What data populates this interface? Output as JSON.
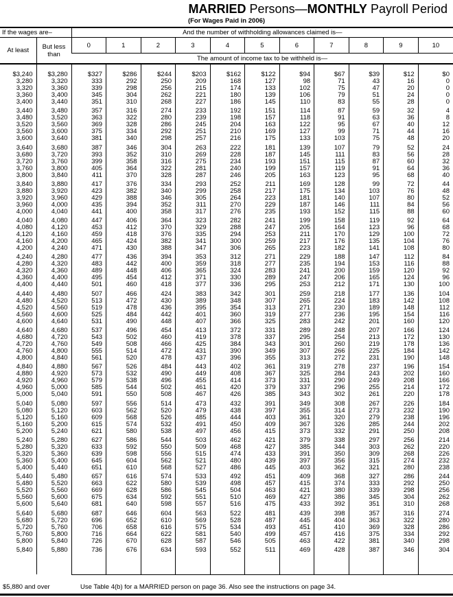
{
  "title": {
    "part1": "MARRIED",
    "part2": " Persons—",
    "part3": "MONTHLY",
    "part4": " Payroll Period"
  },
  "subtitle": "(For Wages Paid in 2006)",
  "header": {
    "wages": "If the wages are–",
    "allowances": "And the number of withholding allowances claimed is—",
    "at_least": "At least",
    "but_less_than": "But less than",
    "allowance_numbers": [
      "0",
      "1",
      "2",
      "3",
      "4",
      "5",
      "6",
      "7",
      "8",
      "9",
      "10"
    ],
    "amount": "The amount of income tax to be withheld is—"
  },
  "rows": [
    [
      "$3,240",
      "$3,280",
      "$327",
      "$286",
      "$244",
      "$203",
      "$162",
      "$122",
      "$94",
      "$67",
      "$39",
      "$12",
      "$0"
    ],
    [
      "3,280",
      "3,320",
      "333",
      "292",
      "250",
      "209",
      "168",
      "127",
      "98",
      "71",
      "43",
      "16",
      "0"
    ],
    [
      "3,320",
      "3,360",
      "339",
      "298",
      "256",
      "215",
      "174",
      "133",
      "102",
      "75",
      "47",
      "20",
      "0"
    ],
    [
      "3,360",
      "3,400",
      "345",
      "304",
      "262",
      "221",
      "180",
      "139",
      "106",
      "79",
      "51",
      "24",
      "0"
    ],
    [
      "3,400",
      "3,440",
      "351",
      "310",
      "268",
      "227",
      "186",
      "145",
      "110",
      "83",
      "55",
      "28",
      "0"
    ],
    [
      "3,440",
      "3,480",
      "357",
      "316",
      "274",
      "233",
      "192",
      "151",
      "114",
      "87",
      "59",
      "32",
      "4"
    ],
    [
      "3,480",
      "3,520",
      "363",
      "322",
      "280",
      "239",
      "198",
      "157",
      "118",
      "91",
      "63",
      "36",
      "8"
    ],
    [
      "3,520",
      "3,560",
      "369",
      "328",
      "286",
      "245",
      "204",
      "163",
      "122",
      "95",
      "67",
      "40",
      "12"
    ],
    [
      "3,560",
      "3,600",
      "375",
      "334",
      "292",
      "251",
      "210",
      "169",
      "127",
      "99",
      "71",
      "44",
      "16"
    ],
    [
      "3,600",
      "3,640",
      "381",
      "340",
      "298",
      "257",
      "216",
      "175",
      "133",
      "103",
      "75",
      "48",
      "20"
    ],
    [
      "3,640",
      "3,680",
      "387",
      "346",
      "304",
      "263",
      "222",
      "181",
      "139",
      "107",
      "79",
      "52",
      "24"
    ],
    [
      "3,680",
      "3,720",
      "393",
      "352",
      "310",
      "269",
      "228",
      "187",
      "145",
      "111",
      "83",
      "56",
      "28"
    ],
    [
      "3,720",
      "3,760",
      "399",
      "358",
      "316",
      "275",
      "234",
      "193",
      "151",
      "115",
      "87",
      "60",
      "32"
    ],
    [
      "3,760",
      "3,800",
      "405",
      "364",
      "322",
      "281",
      "240",
      "199",
      "157",
      "119",
      "91",
      "64",
      "36"
    ],
    [
      "3,800",
      "3,840",
      "411",
      "370",
      "328",
      "287",
      "246",
      "205",
      "163",
      "123",
      "95",
      "68",
      "40"
    ],
    [
      "3,840",
      "3,880",
      "417",
      "376",
      "334",
      "293",
      "252",
      "211",
      "169",
      "128",
      "99",
      "72",
      "44"
    ],
    [
      "3,880",
      "3,920",
      "423",
      "382",
      "340",
      "299",
      "258",
      "217",
      "175",
      "134",
      "103",
      "76",
      "48"
    ],
    [
      "3,920",
      "3,960",
      "429",
      "388",
      "346",
      "305",
      "264",
      "223",
      "181",
      "140",
      "107",
      "80",
      "52"
    ],
    [
      "3,960",
      "4,000",
      "435",
      "394",
      "352",
      "311",
      "270",
      "229",
      "187",
      "146",
      "111",
      "84",
      "56"
    ],
    [
      "4,000",
      "4,040",
      "441",
      "400",
      "358",
      "317",
      "276",
      "235",
      "193",
      "152",
      "115",
      "88",
      "60"
    ],
    [
      "4,040",
      "4,080",
      "447",
      "406",
      "364",
      "323",
      "282",
      "241",
      "199",
      "158",
      "119",
      "92",
      "64"
    ],
    [
      "4,080",
      "4,120",
      "453",
      "412",
      "370",
      "329",
      "288",
      "247",
      "205",
      "164",
      "123",
      "96",
      "68"
    ],
    [
      "4,120",
      "4,160",
      "459",
      "418",
      "376",
      "335",
      "294",
      "253",
      "211",
      "170",
      "129",
      "100",
      "72"
    ],
    [
      "4,160",
      "4,200",
      "465",
      "424",
      "382",
      "341",
      "300",
      "259",
      "217",
      "176",
      "135",
      "104",
      "76"
    ],
    [
      "4,200",
      "4,240",
      "471",
      "430",
      "388",
      "347",
      "306",
      "265",
      "223",
      "182",
      "141",
      "108",
      "80"
    ],
    [
      "4,240",
      "4,280",
      "477",
      "436",
      "394",
      "353",
      "312",
      "271",
      "229",
      "188",
      "147",
      "112",
      "84"
    ],
    [
      "4,280",
      "4,320",
      "483",
      "442",
      "400",
      "359",
      "318",
      "277",
      "235",
      "194",
      "153",
      "116",
      "88"
    ],
    [
      "4,320",
      "4,360",
      "489",
      "448",
      "406",
      "365",
      "324",
      "283",
      "241",
      "200",
      "159",
      "120",
      "92"
    ],
    [
      "4,360",
      "4,400",
      "495",
      "454",
      "412",
      "371",
      "330",
      "289",
      "247",
      "206",
      "165",
      "124",
      "96"
    ],
    [
      "4,400",
      "4,440",
      "501",
      "460",
      "418",
      "377",
      "336",
      "295",
      "253",
      "212",
      "171",
      "130",
      "100"
    ],
    [
      "4,440",
      "4,480",
      "507",
      "466",
      "424",
      "383",
      "342",
      "301",
      "259",
      "218",
      "177",
      "136",
      "104"
    ],
    [
      "4,480",
      "4,520",
      "513",
      "472",
      "430",
      "389",
      "348",
      "307",
      "265",
      "224",
      "183",
      "142",
      "108"
    ],
    [
      "4,520",
      "4,560",
      "519",
      "478",
      "436",
      "395",
      "354",
      "313",
      "271",
      "230",
      "189",
      "148",
      "112"
    ],
    [
      "4,560",
      "4,600",
      "525",
      "484",
      "442",
      "401",
      "360",
      "319",
      "277",
      "236",
      "195",
      "154",
      "116"
    ],
    [
      "4,600",
      "4,640",
      "531",
      "490",
      "448",
      "407",
      "366",
      "325",
      "283",
      "242",
      "201",
      "160",
      "120"
    ],
    [
      "4,640",
      "4,680",
      "537",
      "496",
      "454",
      "413",
      "372",
      "331",
      "289",
      "248",
      "207",
      "166",
      "124"
    ],
    [
      "4,680",
      "4,720",
      "543",
      "502",
      "460",
      "419",
      "378",
      "337",
      "295",
      "254",
      "213",
      "172",
      "130"
    ],
    [
      "4,720",
      "4,760",
      "549",
      "508",
      "466",
      "425",
      "384",
      "343",
      "301",
      "260",
      "219",
      "178",
      "136"
    ],
    [
      "4,760",
      "4,800",
      "555",
      "514",
      "472",
      "431",
      "390",
      "349",
      "307",
      "266",
      "225",
      "184",
      "142"
    ],
    [
      "4,800",
      "4,840",
      "561",
      "520",
      "478",
      "437",
      "396",
      "355",
      "313",
      "272",
      "231",
      "190",
      "148"
    ],
    [
      "4,840",
      "4,880",
      "567",
      "526",
      "484",
      "443",
      "402",
      "361",
      "319",
      "278",
      "237",
      "196",
      "154"
    ],
    [
      "4,880",
      "4,920",
      "573",
      "532",
      "490",
      "449",
      "408",
      "367",
      "325",
      "284",
      "243",
      "202",
      "160"
    ],
    [
      "4,920",
      "4,960",
      "579",
      "538",
      "496",
      "455",
      "414",
      "373",
      "331",
      "290",
      "249",
      "208",
      "166"
    ],
    [
      "4,960",
      "5,000",
      "585",
      "544",
      "502",
      "461",
      "420",
      "379",
      "337",
      "296",
      "255",
      "214",
      "172"
    ],
    [
      "5,000",
      "5,040",
      "591",
      "550",
      "508",
      "467",
      "426",
      "385",
      "343",
      "302",
      "261",
      "220",
      "178"
    ],
    [
      "5,040",
      "5,080",
      "597",
      "556",
      "514",
      "473",
      "432",
      "391",
      "349",
      "308",
      "267",
      "226",
      "184"
    ],
    [
      "5,080",
      "5,120",
      "603",
      "562",
      "520",
      "479",
      "438",
      "397",
      "355",
      "314",
      "273",
      "232",
      "190"
    ],
    [
      "5,120",
      "5,160",
      "609",
      "568",
      "526",
      "485",
      "444",
      "403",
      "361",
      "320",
      "279",
      "238",
      "196"
    ],
    [
      "5,160",
      "5,200",
      "615",
      "574",
      "532",
      "491",
      "450",
      "409",
      "367",
      "326",
      "285",
      "244",
      "202"
    ],
    [
      "5,200",
      "5,240",
      "621",
      "580",
      "538",
      "497",
      "456",
      "415",
      "373",
      "332",
      "291",
      "250",
      "208"
    ],
    [
      "5,240",
      "5,280",
      "627",
      "586",
      "544",
      "503",
      "462",
      "421",
      "379",
      "338",
      "297",
      "256",
      "214"
    ],
    [
      "5,280",
      "5,320",
      "633",
      "592",
      "550",
      "509",
      "468",
      "427",
      "385",
      "344",
      "303",
      "262",
      "220"
    ],
    [
      "5,320",
      "5,360",
      "639",
      "598",
      "556",
      "515",
      "474",
      "433",
      "391",
      "350",
      "309",
      "268",
      "226"
    ],
    [
      "5,360",
      "5,400",
      "645",
      "604",
      "562",
      "521",
      "480",
      "439",
      "397",
      "356",
      "315",
      "274",
      "232"
    ],
    [
      "5,400",
      "5,440",
      "651",
      "610",
      "568",
      "527",
      "486",
      "445",
      "403",
      "362",
      "321",
      "280",
      "238"
    ],
    [
      "5,440",
      "5,480",
      "657",
      "616",
      "574",
      "533",
      "492",
      "451",
      "409",
      "368",
      "327",
      "286",
      "244"
    ],
    [
      "5,480",
      "5,520",
      "663",
      "622",
      "580",
      "539",
      "498",
      "457",
      "415",
      "374",
      "333",
      "292",
      "250"
    ],
    [
      "5,520",
      "5,560",
      "669",
      "628",
      "586",
      "545",
      "504",
      "463",
      "421",
      "380",
      "339",
      "298",
      "256"
    ],
    [
      "5,560",
      "5,600",
      "675",
      "634",
      "592",
      "551",
      "510",
      "469",
      "427",
      "386",
      "345",
      "304",
      "262"
    ],
    [
      "5,600",
      "5,640",
      "681",
      "640",
      "598",
      "557",
      "516",
      "475",
      "433",
      "392",
      "351",
      "310",
      "268"
    ],
    [
      "5,640",
      "5,680",
      "687",
      "646",
      "604",
      "563",
      "522",
      "481",
      "439",
      "398",
      "357",
      "316",
      "274"
    ],
    [
      "5,680",
      "5,720",
      "696",
      "652",
      "610",
      "569",
      "528",
      "487",
      "445",
      "404",
      "363",
      "322",
      "280"
    ],
    [
      "5,720",
      "5,760",
      "706",
      "658",
      "616",
      "575",
      "534",
      "493",
      "451",
      "410",
      "369",
      "328",
      "286"
    ],
    [
      "5,760",
      "5,800",
      "716",
      "664",
      "622",
      "581",
      "540",
      "499",
      "457",
      "416",
      "375",
      "334",
      "292"
    ],
    [
      "5,800",
      "5,840",
      "726",
      "670",
      "628",
      "587",
      "546",
      "505",
      "463",
      "422",
      "381",
      "340",
      "298"
    ],
    [
      "5,840",
      "5,880",
      "736",
      "676",
      "634",
      "593",
      "552",
      "511",
      "469",
      "428",
      "387",
      "346",
      "304"
    ]
  ],
  "footer": {
    "over": "$5,880 and over",
    "note": "Use Table 4(b) for a MARRIED person on page 36. Also see the instructions on page 34."
  }
}
